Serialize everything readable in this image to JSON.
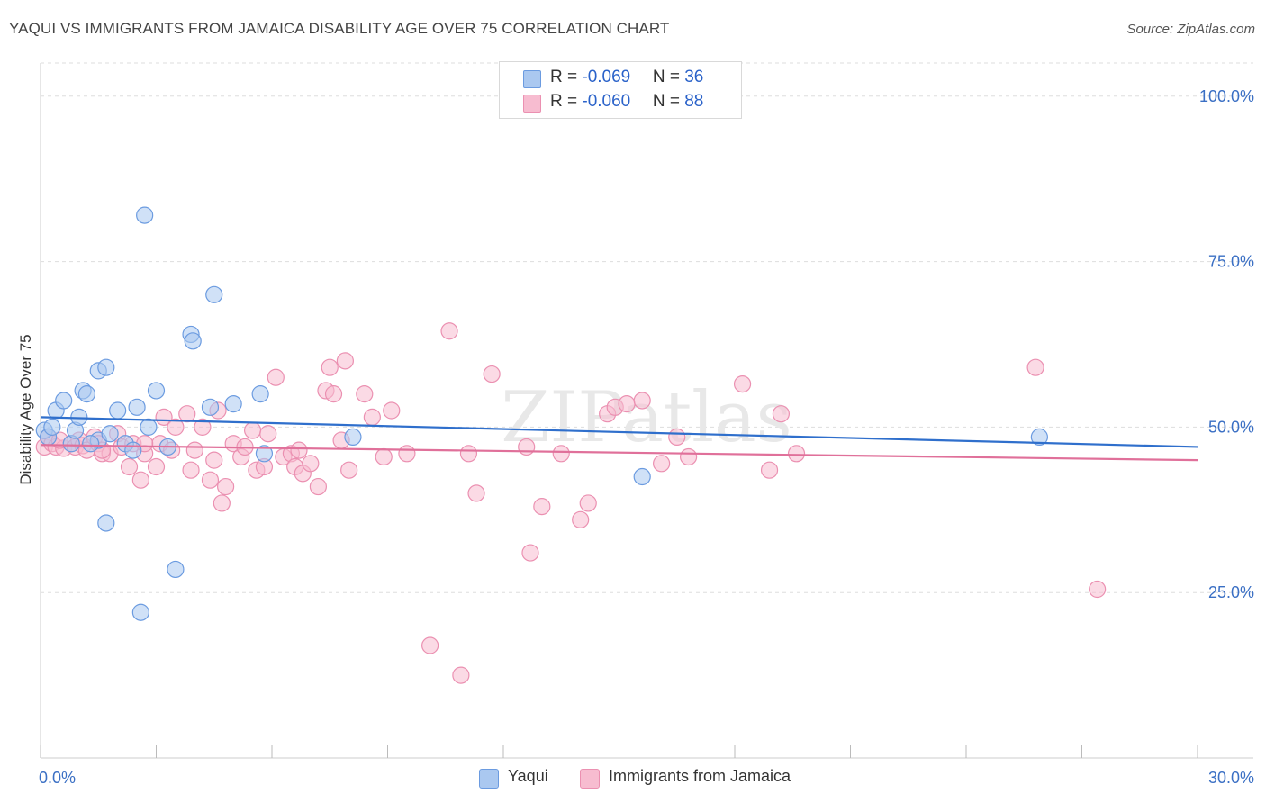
{
  "title": "YAQUI VS IMMIGRANTS FROM JAMAICA DISABILITY AGE OVER 75 CORRELATION CHART",
  "source": "Source: ZipAtlas.com",
  "watermark": "ZIPatlas",
  "stats": [
    {
      "r_label": "R = ",
      "r_value": "-0.069",
      "n_label": "N = ",
      "n_value": "36"
    },
    {
      "r_label": "R = ",
      "r_value": "-0.060",
      "n_label": "N = ",
      "n_value": "88"
    }
  ],
  "legend": [
    "Yaqui",
    "Immigrants from Jamaica"
  ],
  "colors": {
    "yaqui_fill": "#aac8f0",
    "yaqui_stroke": "#6b9be0",
    "yaqui_line": "#2f6fcc",
    "jamaica_fill": "#f7bcd0",
    "jamaica_stroke": "#eb90b1",
    "jamaica_line": "#e0709a",
    "tick_text": "#3a6fc4",
    "grid": "#dddddd"
  },
  "chart_data": {
    "type": "scatter",
    "title": "YAQUI VS IMMIGRANTS FROM JAMAICA DISABILITY AGE OVER 75 CORRELATION CHART",
    "xlabel": "",
    "ylabel": "Disability Age Over 75",
    "xlim": [
      0,
      30
    ],
    "ylim": [
      0,
      105
    ],
    "x_tick_labels": [
      "0.0%",
      "30.0%"
    ],
    "y_ticks": [
      25,
      50,
      75,
      100
    ],
    "y_tick_labels": [
      "25.0%",
      "50.0%",
      "75.0%",
      "100.0%"
    ],
    "grid": true,
    "legend_position": "bottom",
    "series": [
      {
        "name": "Yaqui",
        "trend": [
          [
            0,
            51.5
          ],
          [
            30,
            47.0
          ]
        ],
        "points": [
          [
            0.1,
            49.5
          ],
          [
            0.2,
            48.5
          ],
          [
            0.4,
            52.5
          ],
          [
            0.6,
            54.0
          ],
          [
            0.8,
            47.5
          ],
          [
            0.9,
            49.5
          ],
          [
            1.0,
            51.5
          ],
          [
            1.1,
            55.5
          ],
          [
            1.2,
            55.0
          ],
          [
            1.5,
            48.0
          ],
          [
            1.5,
            58.5
          ],
          [
            1.7,
            59.0
          ],
          [
            1.8,
            49.0
          ],
          [
            2.0,
            52.5
          ],
          [
            2.2,
            47.5
          ],
          [
            2.4,
            46.5
          ],
          [
            2.5,
            53.0
          ],
          [
            2.7,
            82.0
          ],
          [
            2.8,
            50.0
          ],
          [
            3.0,
            55.5
          ],
          [
            3.3,
            47.0
          ],
          [
            3.9,
            64.0
          ],
          [
            3.95,
            63.0
          ],
          [
            4.4,
            53.0
          ],
          [
            4.5,
            70.0
          ],
          [
            5.0,
            53.5
          ],
          [
            5.7,
            55.0
          ],
          [
            5.8,
            46.0
          ],
          [
            8.1,
            48.5
          ],
          [
            1.7,
            35.5
          ],
          [
            3.5,
            28.5
          ],
          [
            2.6,
            22.0
          ],
          [
            15.6,
            42.5
          ],
          [
            25.9,
            48.5
          ],
          [
            0.3,
            50.0
          ],
          [
            1.3,
            47.5
          ]
        ]
      },
      {
        "name": "Immigrants from Jamaica",
        "trend": [
          [
            0,
            47.3
          ],
          [
            30,
            45.0
          ]
        ],
        "points": [
          [
            0.1,
            47.0
          ],
          [
            0.2,
            48.5
          ],
          [
            0.3,
            47.5
          ],
          [
            0.4,
            47.0
          ],
          [
            0.6,
            46.8
          ],
          [
            0.8,
            47.5
          ],
          [
            0.9,
            47.0
          ],
          [
            1.0,
            48.0
          ],
          [
            1.1,
            47.2
          ],
          [
            1.2,
            46.5
          ],
          [
            1.4,
            48.5
          ],
          [
            1.5,
            47.5
          ],
          [
            1.6,
            46.0
          ],
          [
            1.8,
            46.0
          ],
          [
            2.0,
            49.0
          ],
          [
            2.1,
            47.0
          ],
          [
            2.3,
            44.0
          ],
          [
            2.4,
            47.5
          ],
          [
            2.6,
            42.0
          ],
          [
            2.7,
            46.0
          ],
          [
            3.0,
            44.0
          ],
          [
            3.1,
            47.5
          ],
          [
            3.2,
            51.5
          ],
          [
            3.4,
            46.5
          ],
          [
            3.5,
            50.0
          ],
          [
            3.8,
            52.0
          ],
          [
            3.9,
            43.5
          ],
          [
            4.0,
            46.5
          ],
          [
            4.2,
            50.0
          ],
          [
            4.4,
            42.0
          ],
          [
            4.5,
            45.0
          ],
          [
            4.6,
            52.5
          ],
          [
            4.7,
            38.5
          ],
          [
            4.8,
            41.0
          ],
          [
            5.0,
            47.5
          ],
          [
            5.2,
            45.5
          ],
          [
            5.3,
            47.0
          ],
          [
            5.5,
            49.5
          ],
          [
            5.6,
            43.5
          ],
          [
            5.8,
            44.0
          ],
          [
            5.9,
            49.0
          ],
          [
            6.1,
            57.5
          ],
          [
            6.3,
            45.5
          ],
          [
            6.5,
            46.0
          ],
          [
            6.6,
            44.0
          ],
          [
            6.8,
            43.0
          ],
          [
            7.0,
            44.5
          ],
          [
            7.2,
            41.0
          ],
          [
            7.4,
            55.5
          ],
          [
            7.6,
            55.0
          ],
          [
            7.8,
            48.0
          ],
          [
            7.9,
            60.0
          ],
          [
            8.0,
            43.5
          ],
          [
            8.4,
            55.0
          ],
          [
            8.6,
            51.5
          ],
          [
            8.9,
            45.5
          ],
          [
            9.1,
            52.5
          ],
          [
            9.5,
            46.0
          ],
          [
            10.1,
            17.0
          ],
          [
            10.6,
            64.5
          ],
          [
            10.9,
            12.5
          ],
          [
            11.1,
            46.0
          ],
          [
            11.3,
            40.0
          ],
          [
            11.7,
            58.0
          ],
          [
            12.6,
            47.0
          ],
          [
            12.7,
            31.0
          ],
          [
            13.0,
            38.0
          ],
          [
            13.5,
            46.0
          ],
          [
            14.0,
            36.0
          ],
          [
            14.2,
            38.5
          ],
          [
            14.7,
            52.0
          ],
          [
            14.9,
            53.0
          ],
          [
            15.2,
            53.5
          ],
          [
            15.6,
            54.0
          ],
          [
            16.1,
            44.5
          ],
          [
            16.5,
            48.5
          ],
          [
            16.8,
            45.5
          ],
          [
            18.2,
            56.5
          ],
          [
            18.9,
            43.5
          ],
          [
            19.2,
            52.0
          ],
          [
            19.6,
            46.0
          ],
          [
            25.8,
            59.0
          ],
          [
            27.4,
            25.5
          ],
          [
            0.5,
            48.0
          ],
          [
            1.6,
            46.5
          ],
          [
            2.7,
            47.5
          ],
          [
            7.5,
            59.0
          ],
          [
            6.7,
            46.5
          ]
        ]
      }
    ]
  }
}
